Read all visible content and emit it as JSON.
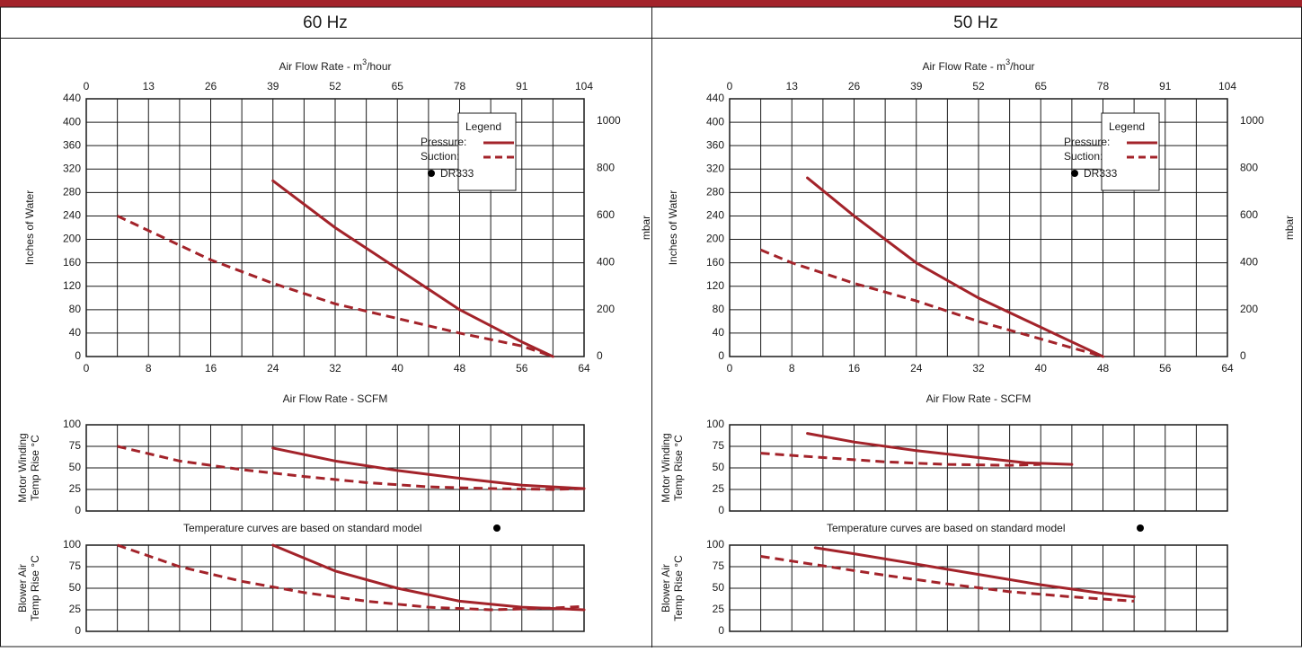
{
  "colors": {
    "accent": "#a3232a",
    "grid": "#1a1a1a",
    "text": "#1a1a1a"
  },
  "chart_data": [
    {
      "panel": "60 Hz",
      "title": "60 Hz",
      "top_axis": {
        "label": "Air Flow Rate - m",
        "sup": "3",
        "unit_suffix": "/hour",
        "ticks": [
          "0",
          "13",
          "26",
          "39",
          "52",
          "65",
          "78",
          "91",
          "104"
        ]
      },
      "bottom_axis": {
        "label": "Air Flow Rate - SCFM",
        "ticks": [
          "0",
          "8",
          "16",
          "24",
          "32",
          "40",
          "48",
          "56",
          "64"
        ],
        "xlim": [
          0,
          64
        ]
      },
      "ylabel": "Inches of Water",
      "ylabel_right": "mbar",
      "y_ticks": [
        "0",
        "40",
        "80",
        "120",
        "160",
        "200",
        "240",
        "280",
        "320",
        "360",
        "400",
        "440"
      ],
      "ylim": [
        0,
        440
      ],
      "right_ticks": [
        "0",
        "200",
        "400",
        "600",
        "800",
        "1000"
      ],
      "legend": {
        "title": "Legend",
        "pressure": "Pressure:",
        "suction": "Suction:",
        "model": "DR333",
        "position": "top-right"
      },
      "series": [
        {
          "name": "Pressure",
          "style": "solid",
          "x": [
            24,
            32,
            40,
            48,
            56,
            60
          ],
          "y": [
            300,
            220,
            150,
            80,
            25,
            0
          ]
        },
        {
          "name": "Suction",
          "style": "dashed",
          "x": [
            4,
            8,
            16,
            24,
            32,
            40,
            48,
            56,
            60
          ],
          "y": [
            240,
            215,
            165,
            125,
            90,
            65,
            40,
            18,
            0
          ]
        }
      ],
      "motor": {
        "ylabel": [
          "Motor Winding",
          "Temp Rise °C"
        ],
        "y_ticks": [
          "0",
          "25",
          "50",
          "75",
          "100"
        ],
        "ylim": [
          0,
          100
        ],
        "series": [
          {
            "name": "Pressure",
            "style": "solid",
            "x": [
              24,
              32,
              40,
              48,
              56,
              64
            ],
            "y": [
              73,
              58,
              47,
              38,
              30,
              26
            ]
          },
          {
            "name": "Suction",
            "style": "dashed",
            "x": [
              4,
              12,
              20,
              28,
              36,
              44,
              52,
              60,
              64
            ],
            "y": [
              75,
              58,
              48,
              40,
              33,
              28,
              26,
              25,
              26
            ]
          }
        ]
      },
      "note": "Temperature curves are based on standard model",
      "blower": {
        "ylabel": [
          "Blower Air",
          "Temp Rise °C"
        ],
        "y_ticks": [
          "0",
          "25",
          "50",
          "75",
          "100"
        ],
        "ylim": [
          0,
          100
        ],
        "series": [
          {
            "name": "Pressure",
            "style": "solid",
            "x": [
              24,
              32,
              40,
              48,
              56,
              64
            ],
            "y": [
              100,
              70,
              50,
              35,
              28,
              25
            ]
          },
          {
            "name": "Suction",
            "style": "dashed",
            "x": [
              4,
              12,
              20,
              28,
              36,
              44,
              52,
              60,
              64
            ],
            "y": [
              100,
              75,
              58,
              45,
              35,
              28,
              25,
              27,
              29
            ]
          }
        ]
      }
    },
    {
      "panel": "50 Hz",
      "title": "50 Hz",
      "top_axis": {
        "label": "Air Flow Rate - m",
        "sup": "3",
        "unit_suffix": "/hour",
        "ticks": [
          "0",
          "13",
          "26",
          "39",
          "52",
          "65",
          "78",
          "91",
          "104"
        ]
      },
      "bottom_axis": {
        "label": "Air Flow Rate - SCFM",
        "ticks": [
          "0",
          "8",
          "16",
          "24",
          "32",
          "40",
          "48",
          "56",
          "64"
        ],
        "xlim": [
          0,
          64
        ]
      },
      "ylabel": "Inches of Water",
      "ylabel_right": "mbar",
      "y_ticks": [
        "0",
        "40",
        "80",
        "120",
        "160",
        "200",
        "240",
        "280",
        "320",
        "360",
        "400",
        "440"
      ],
      "ylim": [
        0,
        440
      ],
      "right_ticks": [
        "0",
        "200",
        "400",
        "600",
        "800",
        "1000"
      ],
      "legend": {
        "title": "Legend",
        "pressure": "Pressure:",
        "suction": "Suction:",
        "model": "DR333",
        "position": "top-right"
      },
      "series": [
        {
          "name": "Pressure",
          "style": "solid",
          "x": [
            10,
            16,
            24,
            32,
            40,
            44,
            48
          ],
          "y": [
            305,
            240,
            160,
            100,
            50,
            25,
            0
          ]
        },
        {
          "name": "Suction",
          "style": "dashed",
          "x": [
            4,
            8,
            16,
            24,
            32,
            40,
            48
          ],
          "y": [
            182,
            160,
            125,
            95,
            60,
            30,
            0
          ]
        }
      ],
      "motor": {
        "ylabel": [
          "Motor Winding",
          "Temp Rise °C"
        ],
        "y_ticks": [
          "0",
          "25",
          "50",
          "75",
          "100"
        ],
        "ylim": [
          0,
          100
        ],
        "series": [
          {
            "name": "Pressure",
            "style": "solid",
            "x": [
              10,
              16,
              24,
              32,
              38,
              44
            ],
            "y": [
              90,
              80,
              70,
              62,
              56,
              54
            ]
          },
          {
            "name": "Suction",
            "style": "dashed",
            "x": [
              4,
              12,
              20,
              28,
              36,
              40
            ],
            "y": [
              67,
              62,
              57,
              54,
              53,
              54
            ]
          }
        ]
      },
      "note": "Temperature curves are based on standard model",
      "blower": {
        "ylabel": [
          "Blower Air",
          "Temp Rise °C"
        ],
        "y_ticks": [
          "0",
          "25",
          "50",
          "75",
          "100"
        ],
        "ylim": [
          0,
          100
        ],
        "series": [
          {
            "name": "Pressure",
            "style": "solid",
            "x": [
              11,
              16,
              24,
              32,
              40,
              48,
              52
            ],
            "y": [
              97,
              90,
              78,
              66,
              54,
              44,
              40
            ]
          },
          {
            "name": "Suction",
            "style": "dashed",
            "x": [
              4,
              12,
              20,
              28,
              36,
              44,
              52
            ],
            "y": [
              87,
              76,
              65,
              55,
              46,
              40,
              35
            ]
          }
        ]
      }
    }
  ]
}
